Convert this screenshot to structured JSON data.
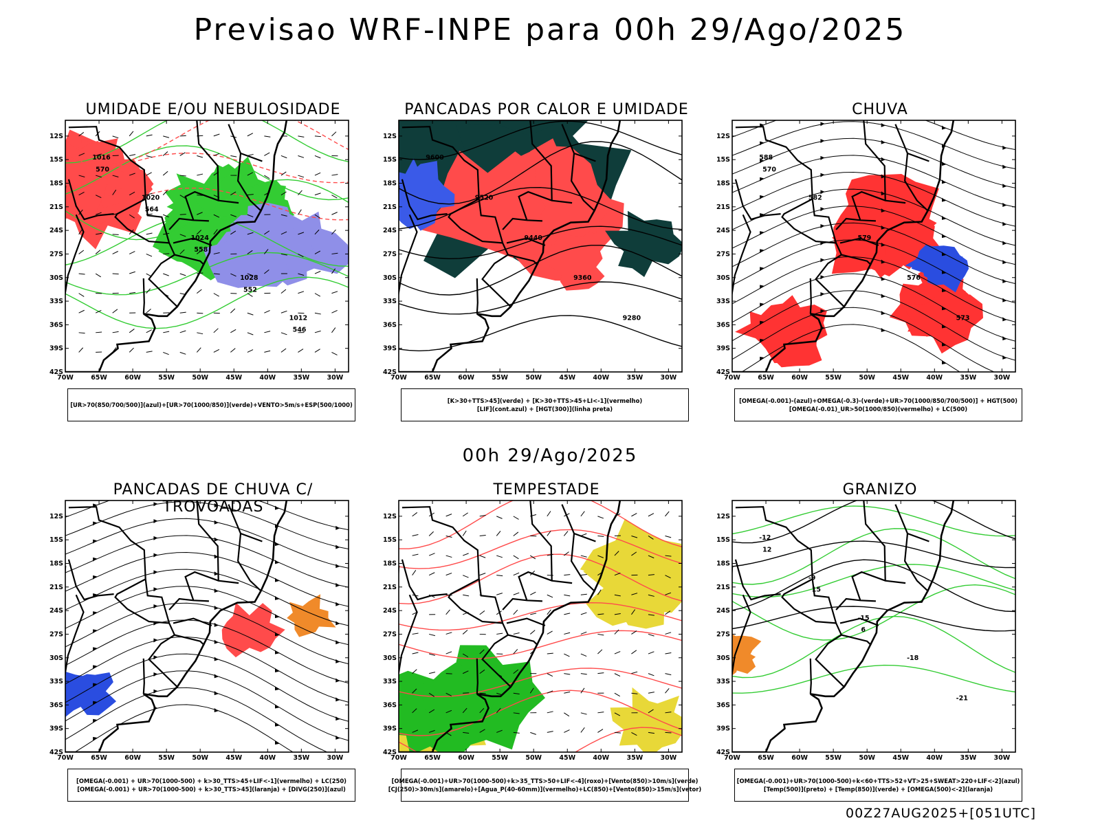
{
  "main_title": "Previsao WRF-INPE  para 00h 29/Ago/2025",
  "row_title": "00h 29/Ago/2025",
  "footer": "00Z27AUG2025+[051UTC]",
  "chart_data": [
    {
      "type": "map",
      "title": "UMIDADE E/OU NEBULOSIDADE",
      "lat_ticks": [
        "12S",
        "15S",
        "18S",
        "21S",
        "24S",
        "27S",
        "30S",
        "33S",
        "36S",
        "39S",
        "42S"
      ],
      "lon_ticks": [
        "70W",
        "65W",
        "60W",
        "55W",
        "50W",
        "45W",
        "40W",
        "35W",
        "30W"
      ],
      "legend": [
        "[UR>70(850/700/500)](azul)+[UR>70(1000/850)](verde)+VENTO>5m/s+ESP(500/1000)"
      ],
      "contour_labels": [
        "1016",
        "1020",
        "1024",
        "1028",
        "1012",
        "570",
        "564",
        "558",
        "552",
        "546"
      ]
    },
    {
      "type": "map",
      "title": "PANCADAS POR CALOR E UMIDADE",
      "lat_ticks": [
        "12S",
        "15S",
        "18S",
        "21S",
        "24S",
        "27S",
        "30S",
        "33S",
        "36S",
        "39S",
        "42S"
      ],
      "lon_ticks": [
        "70W",
        "65W",
        "60W",
        "55W",
        "50W",
        "45W",
        "40W",
        "35W",
        "30W"
      ],
      "legend": [
        "[K>30+TTS>45](verde) + [K>30+TTS>45+LI<-1](vermelho)",
        "[LIF](cont.azul) + [HGT(300)](linha preta)"
      ],
      "contour_labels": [
        "9600",
        "9520",
        "9440",
        "9360",
        "9280"
      ]
    },
    {
      "type": "map",
      "title": "CHUVA",
      "lat_ticks": [
        "12S",
        "15S",
        "18S",
        "21S",
        "24S",
        "27S",
        "30S",
        "33S",
        "36S",
        "39S",
        "42S"
      ],
      "lon_ticks": [
        "70W",
        "65W",
        "60W",
        "55W",
        "50W",
        "45W",
        "40W",
        "35W",
        "30W"
      ],
      "legend": [
        "[OMEGA(-0.001)-(azul)+OMEGA(-0.3)-(verde)+UR>70(1000/850/700/500)] + HGT(500)",
        "[OMEGA(-0.01)_UR>50(1000/850)(vermelho) + LC(500)"
      ],
      "contour_labels": [
        "588",
        "582",
        "579",
        "576",
        "573",
        "570"
      ]
    },
    {
      "type": "map",
      "title": "PANCADAS DE CHUVA C/ TROVOADAS",
      "lat_ticks": [
        "12S",
        "15S",
        "18S",
        "21S",
        "24S",
        "27S",
        "30S",
        "33S",
        "36S",
        "39S",
        "42S"
      ],
      "lon_ticks": [
        "70W",
        "65W",
        "60W",
        "55W",
        "50W",
        "45W",
        "40W",
        "35W",
        "30W"
      ],
      "legend": [
        "[OMEGA(-0.001) + UR>70(1000-500) + k>30_TTS>45+LIF<-1](vermelho) + LC(250)",
        "[OMEGA(-0.001) + UR>70(1000-500) + k>30_TTS>45](laranja) + [DIVG(250)](azul)"
      ],
      "contour_labels": []
    },
    {
      "type": "map",
      "title": "TEMPESTADE",
      "lat_ticks": [
        "12S",
        "15S",
        "18S",
        "21S",
        "24S",
        "27S",
        "30S",
        "33S",
        "36S",
        "39S",
        "42S"
      ],
      "lon_ticks": [
        "70W",
        "65W",
        "60W",
        "55W",
        "50W",
        "45W",
        "40W",
        "35W",
        "30W"
      ],
      "legend": [
        "[OMEGA(-0.001)+UR>70(1000-500)+k>35_TTS>50+LIF<-4](roxo)+[Vento(850)>10m/s](verde)",
        "[CJ(250)>30m/s](amarelo)+[Agua_P(40-60mm)](vermelho)+LC(850)+[Vento(850)>15m/s](vetor)"
      ],
      "contour_labels": []
    },
    {
      "type": "map",
      "title": "GRANIZO",
      "lat_ticks": [
        "12S",
        "15S",
        "18S",
        "21S",
        "24S",
        "27S",
        "30S",
        "33S",
        "36S",
        "39S",
        "42S"
      ],
      "lon_ticks": [
        "70W",
        "65W",
        "60W",
        "55W",
        "50W",
        "45W",
        "40W",
        "35W",
        "30W"
      ],
      "legend": [
        "[OMEGA(-0.001)+UR>70(1000-500)+k<60+TTS>52+VT>25+SWEAT>220+LIF<-2](azul)",
        "[Temp(500)](preto) + [Temp(850)](verde) + [OMEGA(500)<-2](laranja)"
      ],
      "contour_labels": [
        "-12",
        "-9",
        "-15",
        "-18",
        "-21",
        "12",
        "15",
        "6"
      ]
    }
  ]
}
